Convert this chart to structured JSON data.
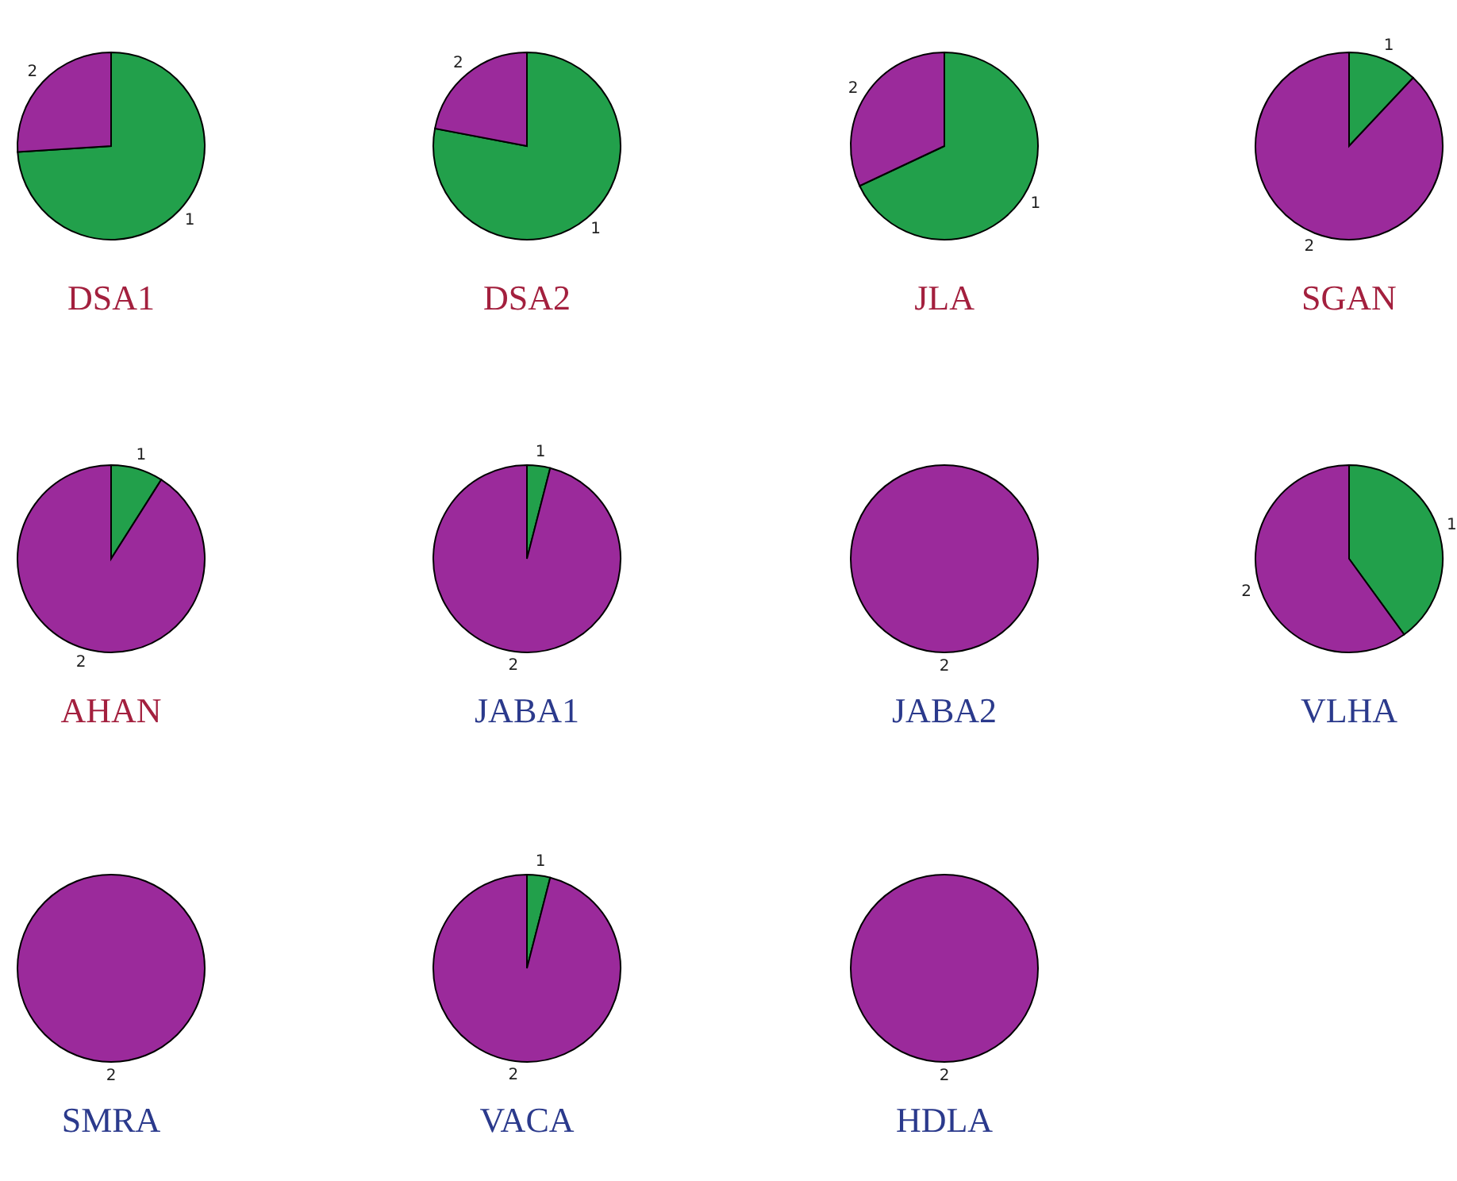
{
  "chart_data": [
    {
      "type": "pie",
      "title": "DSA1",
      "categories": [
        "1",
        "2"
      ],
      "values": [
        74,
        26
      ],
      "colors": [
        "#22a04b",
        "#9b2a9b"
      ]
    },
    {
      "type": "pie",
      "title": "DSA2",
      "categories": [
        "1",
        "2"
      ],
      "values": [
        78,
        22
      ],
      "colors": [
        "#22a04b",
        "#9b2a9b"
      ]
    },
    {
      "type": "pie",
      "title": "JLA",
      "categories": [
        "1",
        "2"
      ],
      "values": [
        68,
        32
      ],
      "colors": [
        "#22a04b",
        "#9b2a9b"
      ]
    },
    {
      "type": "pie",
      "title": "SGAN",
      "categories": [
        "1",
        "2"
      ],
      "values": [
        12,
        88
      ],
      "colors": [
        "#22a04b",
        "#9b2a9b"
      ]
    },
    {
      "type": "pie",
      "title": "AHAN",
      "categories": [
        "1",
        "2"
      ],
      "values": [
        9,
        91
      ],
      "colors": [
        "#22a04b",
        "#9b2a9b"
      ]
    },
    {
      "type": "pie",
      "title": "JABA1",
      "categories": [
        "1",
        "2"
      ],
      "values": [
        4,
        96
      ],
      "colors": [
        "#22a04b",
        "#9b2a9b"
      ]
    },
    {
      "type": "pie",
      "title": "JABA2",
      "categories": [
        "2"
      ],
      "values": [
        100
      ],
      "colors": [
        "#9b2a9b"
      ]
    },
    {
      "type": "pie",
      "title": "VLHA",
      "categories": [
        "1",
        "2"
      ],
      "values": [
        40,
        60
      ],
      "colors": [
        "#22a04b",
        "#9b2a9b"
      ]
    },
    {
      "type": "pie",
      "title": "SMRA",
      "categories": [
        "2"
      ],
      "values": [
        100
      ],
      "colors": [
        "#9b2a9b"
      ]
    },
    {
      "type": "pie",
      "title": "VACA",
      "categories": [
        "1",
        "2"
      ],
      "values": [
        4,
        96
      ],
      "colors": [
        "#22a04b",
        "#9b2a9b"
      ]
    },
    {
      "type": "pie",
      "title": "HDLA",
      "categories": [
        "2"
      ],
      "values": [
        100
      ],
      "colors": [
        "#9b2a9b"
      ]
    }
  ]
}
